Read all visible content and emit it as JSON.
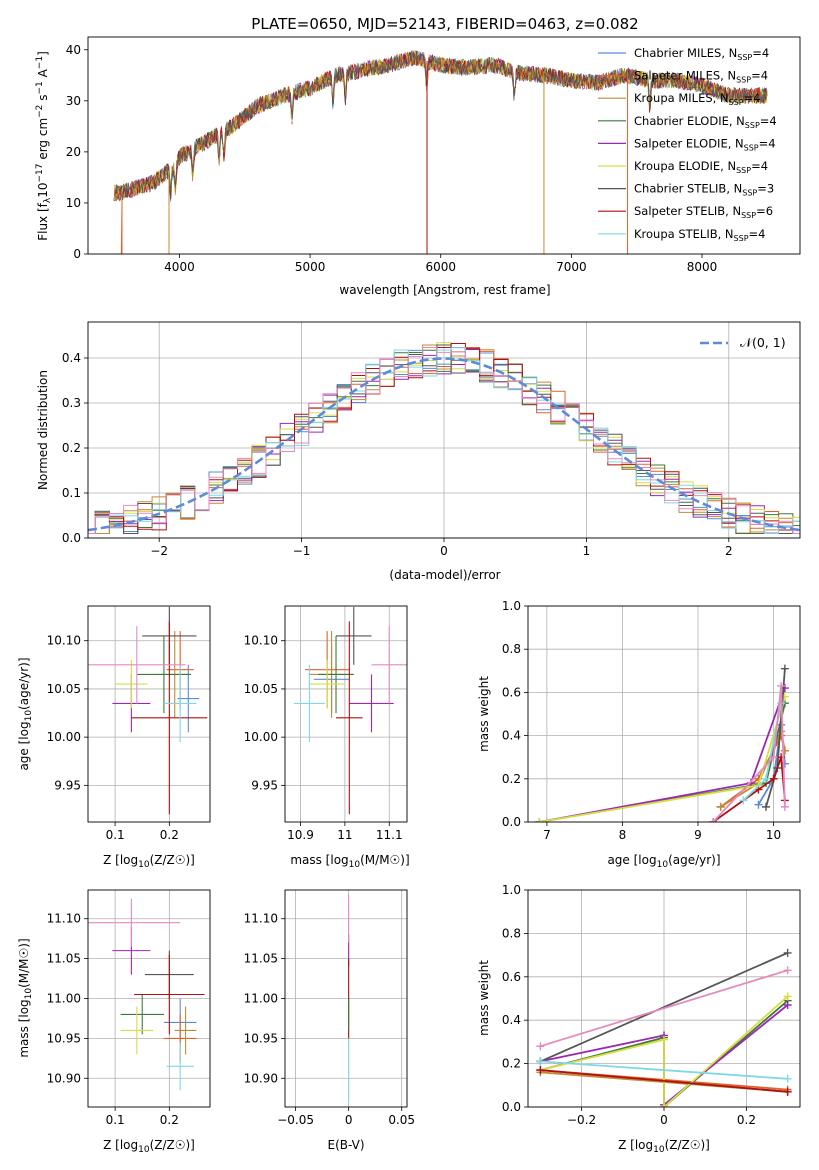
{
  "title": "PLATE=0650, MJD=52143, FIBERID=0463, z=0.082",
  "colors": {
    "Chabrier MILES": "#5b8bd9",
    "Salpeter MILES": "#e0622a",
    "Kroupa MILES": "#c08b33",
    "Chabrier ELODIE": "#3f7a3a",
    "Salpeter ELODIE": "#9b27b5",
    "Kroupa ELODIE": "#d6de40",
    "Chabrier STELIB": "#555555",
    "Salpeter STELIB": "#b01010",
    "Kroupa STELIB": "#7fd8e6",
    "pink": "#e58ac0",
    "gaussian": "#5b8bd9"
  },
  "chart_data": [
    {
      "id": "spectrum",
      "type": "line",
      "title": "PLATE=0650, MJD=52143, FIBERID=0463, z=0.082",
      "xlabel": "wavelength [Angstrom, rest frame]",
      "ylabel": "Flux [f",
      "xlim": [
        3300,
        8750
      ],
      "ylim": [
        0,
        42.5
      ],
      "xticks": [
        4000,
        5000,
        6000,
        7000,
        8000
      ],
      "yticks": [
        0,
        10,
        20,
        30,
        40
      ],
      "legend_position": "top-right",
      "legend": [
        {
          "label": "Chabrier MILES, N",
          "n": "4"
        },
        {
          "label": "Salpeter MILES, N",
          "n": "4"
        },
        {
          "label": "Kroupa MILES, N",
          "n": "4"
        },
        {
          "label": "Chabrier ELODIE, N",
          "n": "4"
        },
        {
          "label": "Salpeter ELODIE, N",
          "n": "4"
        },
        {
          "label": "Kroupa ELODIE, N",
          "n": "4"
        },
        {
          "label": "Chabrier STELIB, N",
          "n": "3"
        },
        {
          "label": "Salpeter STELIB, N",
          "n": "6"
        },
        {
          "label": "Kroupa STELIB, N",
          "n": "4"
        }
      ],
      "sub_ssp": "SSP",
      "x_range_data": [
        3500,
        8500
      ],
      "continuum": [
        [
          3550,
          12
        ],
        [
          3800,
          14
        ],
        [
          3950,
          17
        ],
        [
          4000,
          19
        ],
        [
          4200,
          22
        ],
        [
          4400,
          25
        ],
        [
          4600,
          29
        ],
        [
          4800,
          31
        ],
        [
          5000,
          32.5
        ],
        [
          5200,
          35
        ],
        [
          5400,
          36
        ],
        [
          5600,
          37
        ],
        [
          5800,
          38.5
        ],
        [
          6000,
          37
        ],
        [
          6200,
          36.5
        ],
        [
          6400,
          37
        ],
        [
          6600,
          35.5
        ],
        [
          6800,
          35
        ],
        [
          7000,
          34
        ],
        [
          7200,
          33.5
        ],
        [
          7400,
          35
        ],
        [
          7600,
          34
        ],
        [
          7800,
          34
        ],
        [
          8000,
          33
        ],
        [
          8200,
          31
        ],
        [
          8500,
          31
        ]
      ],
      "absorption_lines": [
        3933,
        3969,
        4102,
        4304,
        4341,
        4861,
        5175,
        5270,
        5893,
        6563,
        7600
      ]
    },
    {
      "id": "residuals",
      "type": "histogram",
      "xlabel": "(data-model)/error",
      "ylabel": "Normed distribution",
      "xlim": [
        -2.5,
        2.5
      ],
      "ylim": [
        0,
        0.48
      ],
      "xticks": [
        -2,
        -1,
        0,
        1,
        2
      ],
      "yticks": [
        0.0,
        0.1,
        0.2,
        0.3,
        0.4
      ],
      "grid": true,
      "legend_position": "top-right",
      "gaussian_label": "𝒩(0, 1)",
      "bin_width": 0.1
    },
    {
      "id": "age-vs-Z",
      "type": "errorbar",
      "xlabel": "Z [log",
      "ylabel": "age  [log",
      "xlim": [
        0.05,
        0.275
      ],
      "ylim": [
        9.912,
        10.136
      ],
      "xticks": [
        0.1,
        0.2
      ],
      "yticks": [
        9.95,
        10.0,
        10.05,
        10.1
      ],
      "grid": true,
      "points": [
        {
          "series": "Chabrier MILES",
          "x": 0.235,
          "xerr": 0.02,
          "y": 10.04,
          "yerr": 0.035
        },
        {
          "series": "Salpeter MILES",
          "x": 0.22,
          "xerr": 0.025,
          "y": 10.07,
          "yerr": 0.04
        },
        {
          "series": "Kroupa MILES",
          "x": 0.21,
          "xerr": 0.03,
          "y": 10.065,
          "yerr": 0.045
        },
        {
          "series": "Chabrier ELODIE",
          "x": 0.19,
          "xerr": 0.05,
          "y": 10.065,
          "yerr": 0.04
        },
        {
          "series": "Salpeter ELODIE",
          "x": 0.13,
          "xerr": 0.035,
          "y": 10.035,
          "yerr": 0.03
        },
        {
          "series": "Kroupa ELODIE",
          "x": 0.13,
          "xerr": 0.03,
          "y": 10.055,
          "yerr": 0.025
        },
        {
          "series": "Chabrier STELIB",
          "x": 0.2,
          "xerr": 0.05,
          "y": 10.105,
          "yerr": 0.03
        },
        {
          "series": "Salpeter STELIB",
          "x": 0.2,
          "xerr": 0.07,
          "y": 10.02,
          "yerr": 0.1
        },
        {
          "series": "Kroupa STELIB",
          "x": 0.22,
          "xerr": 0.03,
          "y": 10.035,
          "yerr": 0.04
        },
        {
          "series": "pink",
          "x": 0.14,
          "xerr": 0.09,
          "y": 10.075,
          "yerr": 0.04
        }
      ]
    },
    {
      "id": "age-vs-mass",
      "type": "errorbar",
      "xlabel": "mass [log",
      "ylabel": "",
      "xlim": [
        10.865,
        11.14
      ],
      "ylim": [
        9.912,
        10.136
      ],
      "xticks": [
        10.9,
        11.0,
        11.1
      ],
      "yticks": [
        9.95,
        10.0,
        10.05,
        10.1
      ],
      "grid": true,
      "points": [
        {
          "series": "Chabrier MILES",
          "x": 10.97,
          "xerr": 0.04,
          "y": 10.06,
          "yerr": 0.035
        },
        {
          "series": "Salpeter MILES",
          "x": 10.96,
          "xerr": 0.05,
          "y": 10.07,
          "yerr": 0.04
        },
        {
          "series": "Kroupa MILES",
          "x": 10.97,
          "xerr": 0.05,
          "y": 10.065,
          "yerr": 0.045
        },
        {
          "series": "Chabrier ELODIE",
          "x": 10.98,
          "xerr": 0.04,
          "y": 10.065,
          "yerr": 0.04
        },
        {
          "series": "Salpeter ELODIE",
          "x": 11.06,
          "xerr": 0.05,
          "y": 10.035,
          "yerr": 0.03
        },
        {
          "series": "Kroupa ELODIE",
          "x": 10.96,
          "xerr": 0.04,
          "y": 10.055,
          "yerr": 0.025
        },
        {
          "series": "Chabrier STELIB",
          "x": 11.02,
          "xerr": 0.04,
          "y": 10.105,
          "yerr": 0.03
        },
        {
          "series": "Salpeter STELIB",
          "x": 11.01,
          "xerr": 0.03,
          "y": 10.02,
          "yerr": 0.1
        },
        {
          "series": "Kroupa STELIB",
          "x": 10.92,
          "xerr": 0.035,
          "y": 10.035,
          "yerr": 0.04
        },
        {
          "series": "pink",
          "x": 11.1,
          "xerr": 0.04,
          "y": 10.075,
          "yerr": 0.04
        }
      ]
    },
    {
      "id": "mass-weight-vs-age",
      "type": "line",
      "xlabel": "age  [log",
      "ylabel": "mass weight",
      "xlim": [
        6.75,
        10.35
      ],
      "ylim": [
        0,
        1
      ],
      "xticks": [
        7,
        8,
        9,
        10
      ],
      "yticks": [
        0.0,
        0.2,
        0.4,
        0.6,
        0.8,
        1.0
      ],
      "grid": true,
      "series": [
        {
          "name": "Chabrier MILES",
          "points": [
            [
              9.8,
              0.08
            ],
            [
              10.0,
              0.2
            ],
            [
              10.1,
              0.45
            ],
            [
              10.15,
              0.27
            ]
          ]
        },
        {
          "name": "Salpeter MILES",
          "points": [
            [
              9.3,
              0.07
            ],
            [
              9.8,
              0.2
            ],
            [
              10.1,
              0.4
            ],
            [
              10.15,
              0.33
            ]
          ]
        },
        {
          "name": "Kroupa MILES",
          "points": [
            [
              9.3,
              0.07
            ],
            [
              9.8,
              0.18
            ],
            [
              10.1,
              0.42
            ],
            [
              10.15,
              0.33
            ]
          ]
        },
        {
          "name": "Chabrier ELODIE",
          "points": [
            [
              6.9,
              0.0
            ],
            [
              9.9,
              0.18
            ],
            [
              10.15,
              0.55
            ]
          ]
        },
        {
          "name": "Salpeter ELODIE",
          "points": [
            [
              6.9,
              0.0
            ],
            [
              9.7,
              0.18
            ],
            [
              10.15,
              0.62
            ]
          ]
        },
        {
          "name": "Kroupa ELODIE",
          "points": [
            [
              6.9,
              0.0
            ],
            [
              9.8,
              0.17
            ],
            [
              10.15,
              0.58
            ]
          ]
        },
        {
          "name": "Chabrier STELIB",
          "points": [
            [
              9.9,
              0.07
            ],
            [
              10.05,
              0.25
            ],
            [
              10.15,
              0.71
            ]
          ]
        },
        {
          "name": "Salpeter STELIB",
          "points": [
            [
              9.2,
              0.0
            ],
            [
              9.8,
              0.15
            ],
            [
              10.0,
              0.2
            ],
            [
              10.1,
              0.3
            ],
            [
              10.15,
              0.1
            ]
          ]
        },
        {
          "name": "Kroupa STELIB",
          "points": [
            [
              9.6,
              0.1
            ],
            [
              9.9,
              0.2
            ],
            [
              10.1,
              0.55
            ]
          ]
        },
        {
          "name": "pink",
          "points": [
            [
              9.2,
              0.0
            ],
            [
              10.0,
              0.3
            ],
            [
              10.1,
              0.63
            ],
            [
              10.15,
              0.07
            ]
          ]
        }
      ]
    },
    {
      "id": "mass-vs-Z",
      "type": "errorbar",
      "xlabel": "Z [log",
      "ylabel": "mass [log",
      "xlim": [
        0.05,
        0.275
      ],
      "ylim": [
        10.864,
        11.136
      ],
      "xticks": [
        0.1,
        0.2
      ],
      "yticks": [
        10.9,
        10.95,
        11.0,
        11.05,
        11.1
      ],
      "grid": true,
      "points": [
        {
          "series": "Chabrier MILES",
          "x": 0.22,
          "xerr": 0.03,
          "y": 10.97,
          "yerr": 0.03
        },
        {
          "series": "Salpeter MILES",
          "x": 0.22,
          "xerr": 0.03,
          "y": 10.95,
          "yerr": 0.03
        },
        {
          "series": "Kroupa MILES",
          "x": 0.23,
          "xerr": 0.02,
          "y": 10.96,
          "yerr": 0.03
        },
        {
          "series": "Chabrier ELODIE",
          "x": 0.15,
          "xerr": 0.04,
          "y": 10.98,
          "yerr": 0.025
        },
        {
          "series": "Salpeter ELODIE",
          "x": 0.13,
          "xerr": 0.035,
          "y": 11.06,
          "yerr": 0.03
        },
        {
          "series": "Kroupa ELODIE",
          "x": 0.14,
          "xerr": 0.03,
          "y": 10.96,
          "yerr": 0.03
        },
        {
          "series": "Chabrier STELIB",
          "x": 0.2,
          "xerr": 0.045,
          "y": 11.03,
          "yerr": 0.03
        },
        {
          "series": "Salpeter STELIB",
          "x": 0.2,
          "xerr": 0.065,
          "y": 11.005,
          "yerr": 0.05
        },
        {
          "series": "Kroupa STELIB",
          "x": 0.22,
          "xerr": 0.025,
          "y": 10.915,
          "yerr": 0.03
        },
        {
          "series": "pink",
          "x": 0.13,
          "xerr": 0.09,
          "y": 11.095,
          "yerr": 0.03
        }
      ]
    },
    {
      "id": "mass-vs-EBV",
      "type": "errorbar",
      "xlabel": "E(B-V)",
      "ylabel": "",
      "xlim": [
        -0.06,
        0.055
      ],
      "ylim": [
        10.864,
        11.136
      ],
      "xticks": [
        -0.05,
        0.0,
        0.05
      ],
      "yticks": [
        10.9,
        10.95,
        11.0,
        11.05,
        11.1
      ],
      "grid": true,
      "points": [
        {
          "series": "Salpeter ELODIE",
          "x": 0,
          "xerr": 0,
          "y": 11.06,
          "yerr": 0.02
        },
        {
          "series": "Salpeter STELIB",
          "x": 0,
          "xerr": 0,
          "y": 11.0,
          "yerr": 0.05
        },
        {
          "series": "Kroupa STELIB",
          "x": 0,
          "xerr": 0,
          "y": 10.91,
          "yerr": 0.04
        },
        {
          "series": "Chabrier ELODIE",
          "x": 0,
          "xerr": 0,
          "y": 10.98,
          "yerr": 0.02
        },
        {
          "series": "pink",
          "x": 0,
          "xerr": 0,
          "y": 11.1,
          "yerr": 0.03
        }
      ]
    },
    {
      "id": "mass-weight-vs-Z",
      "type": "line",
      "xlabel": "Z [log",
      "ylabel": "mass weight",
      "xlim": [
        -0.33,
        0.33
      ],
      "ylim": [
        0,
        1
      ],
      "xticks": [
        -0.2,
        0.0,
        0.2
      ],
      "yticks": [
        0.0,
        0.2,
        0.4,
        0.6,
        0.8,
        1.0
      ],
      "grid": true,
      "series": [
        {
          "name": "Chabrier MILES",
          "points": [
            [
              -0.3,
              0.17
            ],
            [
              0.3,
              0.07
            ]
          ]
        },
        {
          "name": "Salpeter MILES",
          "points": [
            [
              -0.3,
              0.17
            ],
            [
              0.3,
              0.08
            ]
          ]
        },
        {
          "name": "Kroupa MILES",
          "points": [
            [
              -0.3,
              0.16
            ],
            [
              0.3,
              0.07
            ]
          ]
        },
        {
          "name": "Chabrier ELODIE",
          "points": [
            [
              -0.3,
              0.17
            ],
            [
              0.0,
              0.32
            ],
            [
              0.0,
              0.0
            ],
            [
              0.3,
              0.49
            ]
          ]
        },
        {
          "name": "Salpeter ELODIE",
          "points": [
            [
              -0.3,
              0.21
            ],
            [
              0.0,
              0.33
            ],
            [
              0.0,
              0.01
            ],
            [
              0.3,
              0.47
            ]
          ]
        },
        {
          "name": "Kroupa ELODIE",
          "points": [
            [
              -0.3,
              0.17
            ],
            [
              0.0,
              0.31
            ],
            [
              0.0,
              0.0
            ],
            [
              0.3,
              0.51
            ]
          ]
        },
        {
          "name": "Chabrier STELIB",
          "points": [
            [
              -0.3,
              0.21
            ],
            [
              0.3,
              0.71
            ]
          ]
        },
        {
          "name": "Salpeter STELIB",
          "points": [
            [
              -0.3,
              0.17
            ],
            [
              0.3,
              0.07
            ]
          ]
        },
        {
          "name": "Kroupa STELIB",
          "points": [
            [
              -0.3,
              0.21
            ],
            [
              0.3,
              0.13
            ]
          ]
        },
        {
          "name": "pink",
          "points": [
            [
              -0.3,
              0.28
            ],
            [
              0.3,
              0.63
            ]
          ]
        }
      ]
    }
  ]
}
